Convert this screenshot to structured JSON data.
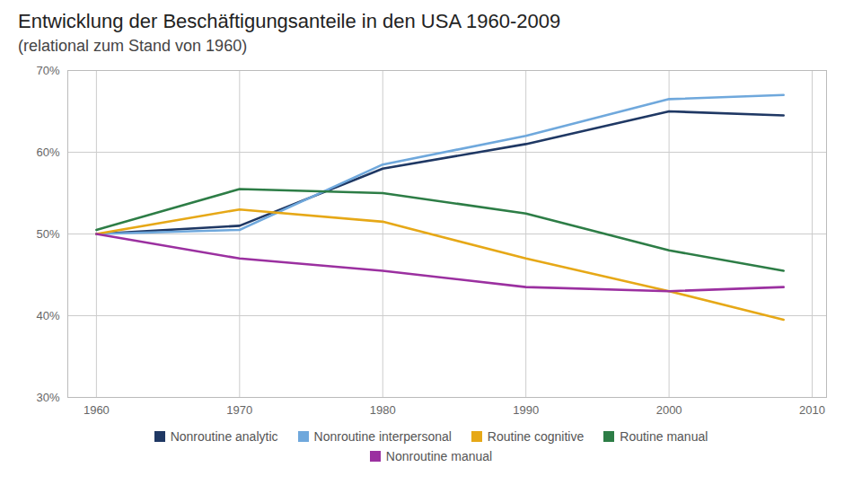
{
  "chart_data": {
    "type": "line",
    "title": "Entwicklung der Beschäftigungsanteile in den USA 1960-2009",
    "subtitle": "(relational zum Stand von 1960)",
    "x": [
      1960,
      1970,
      1980,
      1990,
      2000,
      2008
    ],
    "series": [
      {
        "name": "Nonroutine analytic",
        "color": "#1f3864",
        "values": [
          50,
          51,
          58,
          61,
          65,
          64.5
        ]
      },
      {
        "name": "Nonroutine interpersonal",
        "color": "#6fa8dc",
        "values": [
          50,
          50.5,
          58.5,
          62,
          66.5,
          67
        ]
      },
      {
        "name": "Routine cognitive",
        "color": "#e6a817",
        "values": [
          50,
          53,
          51.5,
          47,
          43,
          39.5
        ]
      },
      {
        "name": "Routine manual",
        "color": "#2d7d46",
        "values": [
          50.5,
          55.5,
          55,
          52.5,
          48,
          45.5
        ]
      },
      {
        "name": "Nonroutine manual",
        "color": "#9b30a0",
        "values": [
          50,
          47,
          45.5,
          43.5,
          43,
          43.5
        ]
      }
    ],
    "xlim": [
      1958,
      2011
    ],
    "xticks": [
      1960,
      1970,
      1980,
      1990,
      2000,
      2010
    ],
    "ylim": [
      30,
      70
    ],
    "yticks": [
      {
        "value": 30,
        "label": "30%"
      },
      {
        "value": 40,
        "label": "40%"
      },
      {
        "value": 50,
        "label": "50%"
      },
      {
        "value": 60,
        "label": "60%"
      },
      {
        "value": 70,
        "label": "70%"
      }
    ],
    "grid": true,
    "legend": "bottom"
  }
}
